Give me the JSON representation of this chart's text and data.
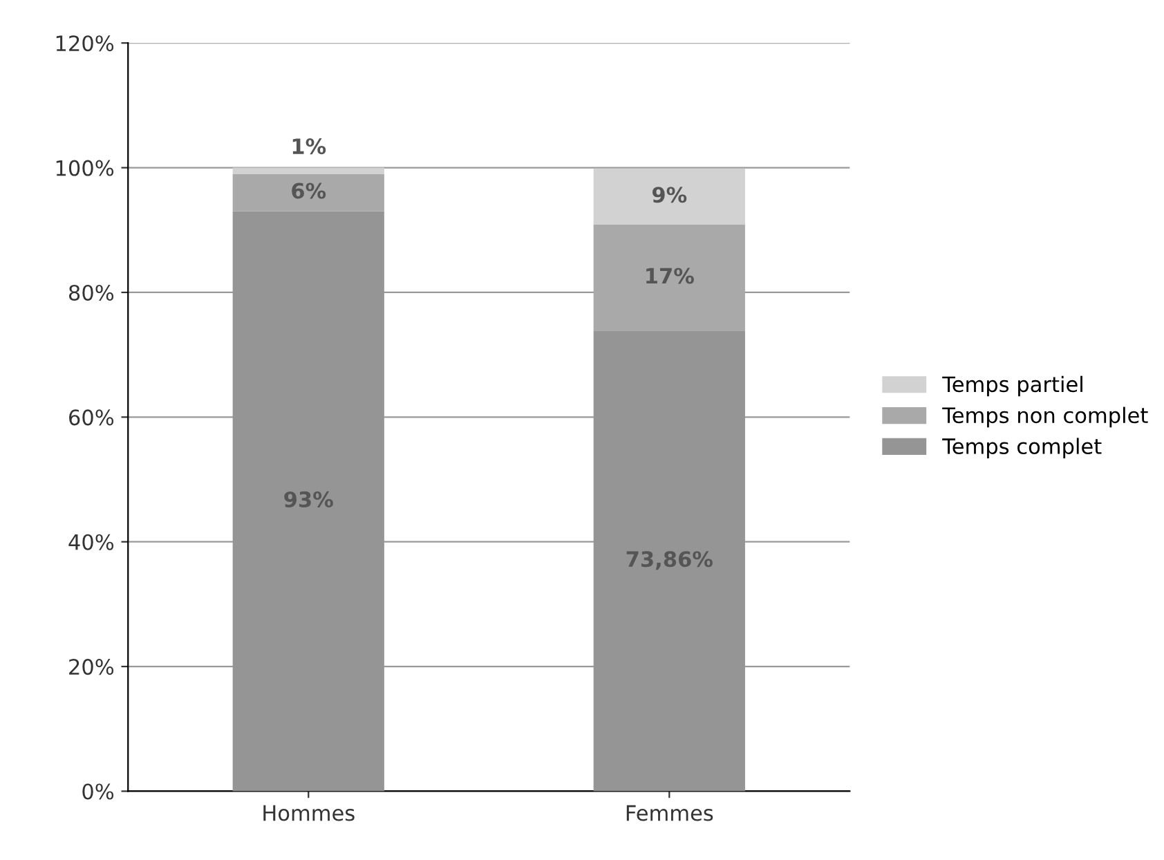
{
  "chart_data": {
    "type": "bar",
    "stacked": true,
    "categories": [
      "Hommes",
      "Femmes"
    ],
    "series": [
      {
        "name": "Temps complet",
        "color": "#959595",
        "values": [
          93,
          73.86
        ],
        "value_labels": [
          "93%",
          "73,86%"
        ]
      },
      {
        "name": "Temps non complet",
        "color": "#a9a9a9",
        "values": [
          6,
          17
        ],
        "value_labels": [
          "6%",
          "17%"
        ]
      },
      {
        "name": "Temps partiel",
        "color": "#d2d2d2",
        "values": [
          1,
          9
        ],
        "value_labels": [
          "1%",
          "9%"
        ]
      }
    ],
    "ylim": [
      0,
      120
    ],
    "yticks": [
      {
        "value": 0,
        "label": "0%"
      },
      {
        "value": 20,
        "label": "20%"
      },
      {
        "value": 40,
        "label": "40%"
      },
      {
        "value": 60,
        "label": "60%"
      },
      {
        "value": 80,
        "label": "80%"
      },
      {
        "value": 100,
        "label": "100%"
      },
      {
        "value": 120,
        "label": "120%"
      }
    ],
    "grid": "y",
    "legend": "right"
  }
}
